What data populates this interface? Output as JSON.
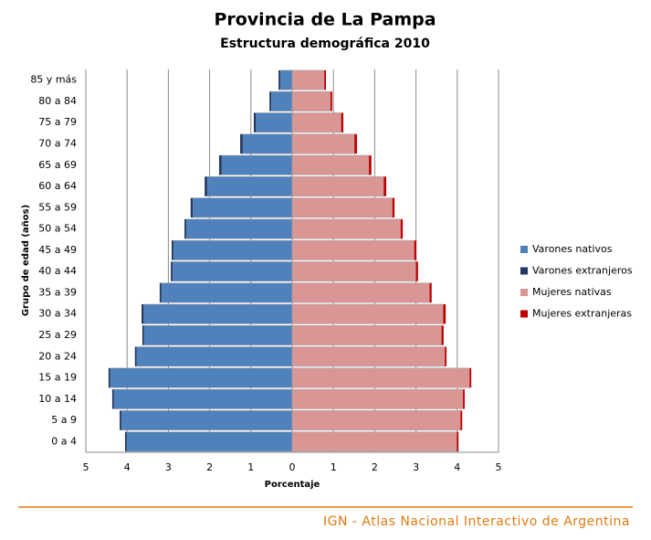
{
  "chart_data": {
    "type": "pyramid",
    "title": "Provincia de La Pampa",
    "subtitle": "Estructura demográfica 2010",
    "x_label": "Porcentaje",
    "y_label": "Grupo de edad (años)",
    "footer": "IGN - Atlas Nacional Interactivo de Argentina",
    "categories": [
      "85 y más",
      "80 a 84",
      "75 a 79",
      "70 a 74",
      "65 a 69",
      "60 a 64",
      "55 a 59",
      "50 a 54",
      "45 a 49",
      "40 a 44",
      "35 a 39",
      "30 a 34",
      "25 a 29",
      "20 a 24",
      "15 a 19",
      "10 a 14",
      "5 a 9",
      "0 a 4"
    ],
    "series": [
      {
        "name": "Varones nativos",
        "color": "#4f81bd",
        "values": [
          -0.29,
          -0.51,
          -0.88,
          -1.2,
          -1.71,
          -2.06,
          -2.41,
          -2.57,
          -2.88,
          -2.9,
          -3.17,
          -3.6,
          -3.59,
          -3.77,
          -4.41,
          -4.32,
          -4.14,
          -4.01
        ]
      },
      {
        "name": "Varones extranjeros",
        "color": "#1f3864",
        "values": [
          -0.04,
          -0.04,
          -0.05,
          -0.06,
          -0.06,
          -0.06,
          -0.05,
          -0.04,
          -0.04,
          -0.04,
          -0.04,
          -0.05,
          -0.04,
          -0.04,
          -0.04,
          -0.04,
          -0.04,
          -0.04
        ]
      },
      {
        "name": "Mujeres nativas",
        "color": "#d99694",
        "values": [
          0.78,
          0.93,
          1.19,
          1.51,
          1.86,
          2.22,
          2.43,
          2.63,
          2.96,
          3.0,
          3.33,
          3.66,
          3.62,
          3.7,
          4.3,
          4.14,
          4.08,
          3.99
        ]
      },
      {
        "name": "Mujeres extranjeras",
        "color": "#c00000",
        "values": [
          0.04,
          0.04,
          0.05,
          0.06,
          0.06,
          0.06,
          0.05,
          0.05,
          0.05,
          0.05,
          0.05,
          0.06,
          0.05,
          0.04,
          0.04,
          0.04,
          0.04,
          0.04
        ]
      }
    ],
    "xlim": [
      -5,
      5
    ],
    "xticks": [
      {
        "value": -5,
        "label": "5"
      },
      {
        "value": -4,
        "label": "4"
      },
      {
        "value": -3,
        "label": "3"
      },
      {
        "value": -2,
        "label": "2"
      },
      {
        "value": -1,
        "label": "1"
      },
      0,
      1,
      2,
      3,
      4,
      5
    ],
    "grid": true,
    "legend": "right"
  }
}
